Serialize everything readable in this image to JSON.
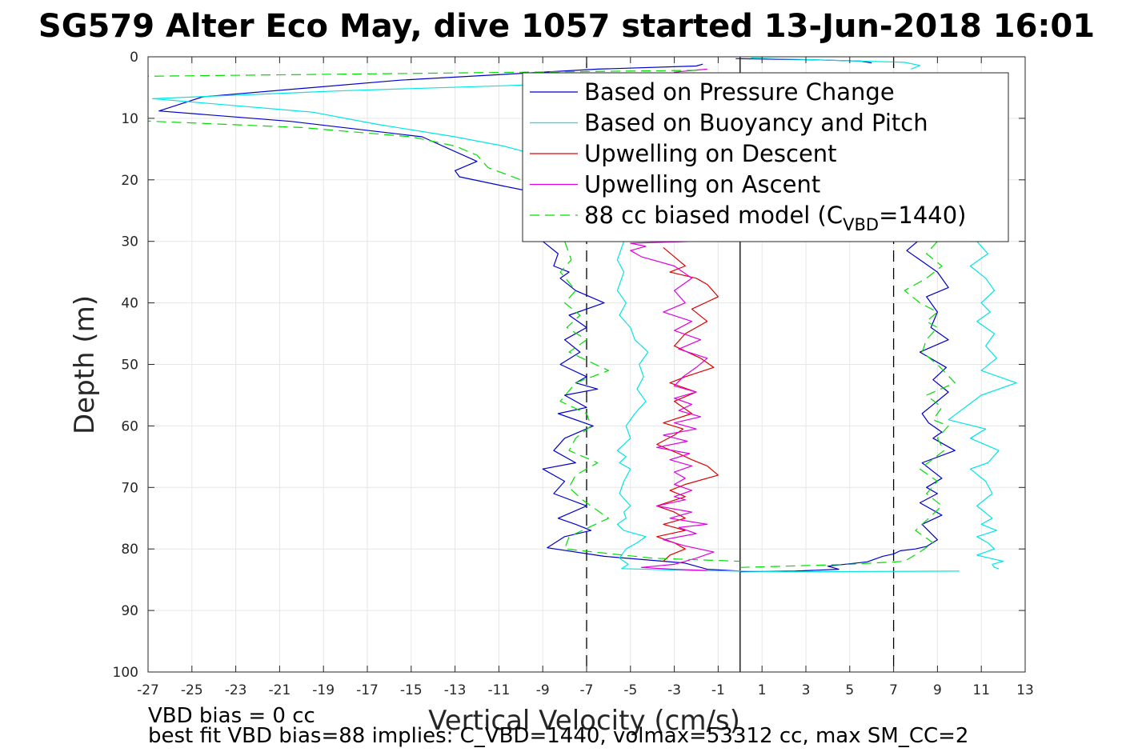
{
  "chart_data": {
    "type": "line",
    "title": "SG579 Alter Eco May, dive 1057 started 13-Jun-2018 16:01",
    "xlabel": "Vertical Velocity (cm/s)",
    "ylabel": "Depth (m)",
    "xlim": [
      -27,
      13
    ],
    "ylim": [
      0,
      100
    ],
    "y_reversed": true,
    "grid": true,
    "x_ticks": [
      -27,
      -25,
      -23,
      -21,
      -19,
      -17,
      -15,
      -13,
      -11,
      -9,
      -7,
      -5,
      -3,
      -1,
      1,
      3,
      5,
      7,
      9,
      11,
      13
    ],
    "y_ticks": [
      0,
      10,
      20,
      30,
      40,
      50,
      60,
      70,
      80,
      90,
      100
    ],
    "legend_placement": "top-right",
    "reference_lines": [
      {
        "x": -7,
        "style": "dashed",
        "color": "#000000"
      },
      {
        "x": 0,
        "style": "solid",
        "color": "#000000"
      },
      {
        "x": 7,
        "style": "dashed",
        "color": "#000000"
      }
    ],
    "series": [
      {
        "name": "Based on Pressure Change",
        "color": "#0000cc",
        "dash": false,
        "segments": [
          {
            "x": [
              -1.7,
              -2.0,
              -6.5,
              -15.5,
              -24.5,
              -26.5,
              -20.5,
              -14.5,
              -12.0,
              -13.0,
              -12.8,
              -10.8,
              -8.0
            ],
            "y": [
              1.2,
              1.5,
              2.0,
              3.8,
              6.5,
              8.8,
              10.5,
              13.0,
              17.0,
              18.5,
              19.5,
              21.0,
              23.0
            ]
          },
          {
            "x": [
              -9.0,
              -8.3,
              -8.5,
              -7.8,
              -8.2,
              -7.5,
              -6.2,
              -7.8,
              -7.0,
              -8.0,
              -7.3,
              -8.2,
              -7.0,
              -7.5,
              -6.5,
              -8.0,
              -7.0,
              -8.3,
              -6.7,
              -8.0,
              -8.5,
              -7.5,
              -9.0,
              -8.0,
              -8.5,
              -7.0,
              -8.3,
              -7.5,
              -6.8,
              -8.0,
              -8.8,
              -6.2,
              -2.5,
              -1.5,
              0.0
            ],
            "y": [
              30,
              32,
              34,
              35,
              36,
              38,
              40,
              42,
              44,
              46,
              48,
              50,
              52,
              53,
              54,
              55,
              57,
              58,
              60,
              62,
              64,
              66,
              67,
              69,
              71,
              73,
              75,
              76,
              77,
              78,
              79.8,
              81.2,
              82.3,
              83.3,
              83.6
            ]
          },
          {
            "x": [
              0.0,
              2.5,
              4.5,
              4.0,
              5.8,
              6.5,
              7.0,
              7.3,
              8.0,
              8.5,
              9.0,
              8.3,
              9.2,
              8.2,
              9.0,
              8.5,
              9.2,
              8.3,
              9.8,
              8.8,
              9.2,
              8.6,
              8.3,
              9.5,
              8.8,
              9.4,
              8.2,
              9.5,
              8.7,
              9.0,
              8.5,
              9.5,
              9.0,
              8.2,
              7.6,
              8.1
            ],
            "y": [
              83.7,
              83.6,
              83.3,
              82.8,
              82.1,
              81.2,
              80.8,
              80.3,
              80.0,
              79.6,
              78.5,
              76.0,
              74.5,
              72.5,
              71.0,
              70.0,
              68.5,
              66.0,
              64.0,
              62.0,
              61.0,
              59.5,
              58.0,
              54.5,
              52.5,
              50.5,
              48.0,
              46.0,
              44.0,
              41.5,
              39.0,
              37.5,
              35.0,
              33.0,
              31.5,
              30.0
            ]
          },
          {
            "x": [
              -0.2,
              3.5,
              5.5,
              6.0
            ],
            "y": [
              0.3,
              0.5,
              0.7,
              1.0
            ]
          }
        ]
      },
      {
        "name": "Based on Buoyancy and Pitch",
        "color": "#00e5e5",
        "dash": false,
        "segments": [
          {
            "x": [
              -2.2,
              -3.0,
              -9.0,
              -18.0,
              -26.8,
              -19.5,
              -16.5,
              -13.0,
              -10.8,
              -9.2,
              -8.0
            ],
            "y": [
              3.8,
              4.2,
              4.5,
              5.5,
              6.8,
              9.0,
              11.0,
              13.0,
              14.5,
              16.0,
              17.5
            ]
          },
          {
            "x": [
              -5.3,
              -5.6,
              -5.3,
              -5.6,
              -5.2,
              -5.5,
              -5.0,
              -4.8,
              -4.2,
              -4.6,
              -4.4,
              -4.7,
              -4.3,
              -4.8,
              -5.2,
              -5.0,
              -5.6,
              -5.2,
              -5.5,
              -5.0,
              -5.3,
              -5.5,
              -5.0,
              -5.3,
              -5.2,
              -5.6,
              -5.3,
              -4.3,
              -4.7,
              -5.2,
              -5.5,
              -5.1,
              -5.4,
              -2.0,
              2.0,
              10.0
            ],
            "y": [
              30,
              33,
              35,
              38,
              40,
              42,
              44,
              46,
              48,
              50,
              52,
              54,
              56,
              58,
              60,
              62,
              64,
              65,
              66,
              67,
              69,
              71,
              73,
              74,
              75,
              76,
              77,
              78,
              79,
              80,
              81.5,
              82.5,
              83.2,
              83.5,
              83.7,
              83.6
            ]
          },
          {
            "x": [
              10.8,
              11.3,
              10.5,
              11.2,
              11.6,
              11.0,
              11.4,
              10.8,
              11.6,
              11.2,
              11.7,
              11.0,
              12.6,
              11.0,
              9.5,
              11.2,
              10.5,
              11.8,
              11.3,
              10.5,
              11.2,
              11.5,
              10.8,
              11.5,
              11.0,
              11.7,
              10.8,
              11.3,
              11.6,
              10.8,
              12.0,
              11.5,
              11.6,
              11.8
            ],
            "y": [
              30,
              32,
              34,
              36,
              38,
              40,
              41.5,
              43,
              45,
              47,
              49,
              51,
              53,
              55,
              59,
              60.5,
              62,
              64,
              66,
              67,
              69,
              71,
              73,
              75,
              76,
              77,
              78,
              79,
              80,
              81,
              82,
              82.5,
              83,
              83.2
            ]
          },
          {
            "x": [
              0.5,
              3.5,
              7.5,
              8.2,
              7.8
            ],
            "y": [
              0.2,
              0.5,
              0.9,
              1.4,
              2.0
            ]
          }
        ]
      },
      {
        "name": "Upwelling on Descent",
        "color": "#e00000",
        "dash": false,
        "segments": [
          {
            "x": [
              -3.5,
              -3.0,
              -2.5,
              -3.2,
              -2.0,
              -1.5,
              -1.0,
              -2.2,
              -1.5,
              -2.5,
              -3.0,
              -1.8,
              -1.2,
              -2.5,
              -3.2,
              -2.0,
              -3.0,
              -2.2,
              -3.5,
              -2.6,
              -3.0,
              -3.8,
              -2.8,
              -2.2,
              -1.5,
              -1.0,
              -2.5,
              -3.2,
              -2.5,
              -3.8,
              -3.0,
              -2.5,
              -3.5,
              -2.5,
              -3.8,
              -3.0,
              -2.5,
              -3.2,
              -3.5
            ],
            "y": [
              31,
              32.5,
              34,
              35,
              36,
              37,
              39,
              41,
              43,
              45,
              47,
              49,
              50.5,
              52,
              53,
              54.5,
              56,
              58,
              59.5,
              60.5,
              61.5,
              63,
              64.5,
              65.5,
              66.5,
              68,
              69.5,
              70.5,
              71.5,
              73,
              74,
              75,
              76,
              77,
              78,
              79,
              80,
              81,
              82
            ]
          }
        ]
      },
      {
        "name": "Upwelling on Ascent",
        "color": "#e000e0",
        "dash": false,
        "segments": [
          {
            "x": [
              -1.5,
              -3.0,
              -4.5,
              -3.0,
              -2.0,
              -1.2,
              -2.5,
              -3.5,
              -2.0,
              -2.8,
              -1.5,
              -3.2,
              -2.2,
              -3.8,
              -2.5,
              -3.0,
              -2.2,
              -3.0,
              -2.5,
              -3.0,
              -2.2,
              -3.2,
              -2.3,
              -3.8,
              -2.4,
              -3.5,
              -2.0,
              -3.0,
              -1.8,
              -2.8,
              -2.2,
              -3.0,
              -2.0,
              -3.0,
              -2.6,
              -2.0,
              -1.5,
              -2.8,
              -1.8,
              -3.0,
              -2.2,
              -3.5,
              -2.5,
              -3.0,
              -2.2,
              -3.0,
              -4.5,
              -5.0,
              -4.3,
              -5.0,
              -2.0
            ],
            "y": [
              83.5,
              83.3,
              83,
              82.5,
              81.5,
              80.5,
              79.5,
              78.5,
              77.5,
              76.5,
              76,
              75,
              74,
              73,
              72,
              71.5,
              70.5,
              69.5,
              68.5,
              67.5,
              66.5,
              65.5,
              64.5,
              63.5,
              62.5,
              61.5,
              60.5,
              59.5,
              58.5,
              57.5,
              56.5,
              55.5,
              54.5,
              53.5,
              52,
              50.5,
              49,
              47.5,
              46,
              44.5,
              43,
              41.5,
              40,
              38,
              36,
              34,
              32.5,
              31.5,
              30.8,
              30.3,
              30
            ]
          },
          {
            "x": [
              -1.5,
              -3.0,
              -2.0
            ],
            "y": [
              2.0,
              2.5,
              3.0
            ]
          }
        ]
      },
      {
        "name": "88 cc biased model (CVBD=1440)",
        "legend_base": "88 cc biased model (C",
        "legend_sub": "VBD",
        "legend_tail": "=1440)",
        "color": "#00dd00",
        "dash": true,
        "segments": [
          {
            "x": [
              -2.0,
              -28.0
            ],
            "y": [
              2.2,
              3.2
            ]
          },
          {
            "x": [
              -28.0,
              -20.0,
              -15.0,
              -13.0,
              -12.0,
              -11.5,
              -10.0
            ],
            "y": [
              10.3,
              11.5,
              13.0,
              14.5,
              16.0,
              18.0,
              20.0
            ]
          },
          {
            "x": [
              -8.0,
              -7.7,
              -8.2,
              -7.5,
              -8.0,
              -7.3,
              -7.9,
              -7.0,
              -7.8,
              -6.0,
              -7.5,
              -8.2,
              -7.0,
              -6.8,
              -7.5,
              -7.8,
              -6.5,
              -7.5,
              -7.8,
              -7.2,
              -6.0,
              -7.8,
              -8.0,
              -4.0,
              0.0
            ],
            "y": [
              30,
              33,
              35,
              38,
              40,
              42,
              44,
              46,
              48,
              51,
              53,
              56,
              58,
              60,
              62,
              64,
              66,
              68,
              70,
              72,
              75,
              78,
              80,
              81.5,
              82.0
            ]
          },
          {
            "x": [
              0.0,
              5.0,
              7.5,
              8.2,
              8.8,
              8.0,
              8.6,
              9.2,
              8.5,
              9.0,
              8.2,
              9.3,
              9.0,
              9.5,
              8.8,
              9.2,
              8.5,
              9.8,
              9.0,
              8.3,
              8.5,
              9.0,
              8.5,
              9.0,
              8.2,
              7.5,
              8.5,
              9.2,
              8.5,
              9.0
            ],
            "y": [
              83.0,
              82.5,
              82.0,
              80.5,
              79.0,
              77.0,
              75.0,
              73.0,
              71.0,
              69.0,
              67.0,
              64.0,
              62.0,
              60.0,
              59.0,
              57.0,
              55.0,
              53.0,
              50.0,
              48.0,
              46.0,
              44.0,
              43.0,
              41.5,
              40.0,
              38.0,
              36.0,
              34.0,
              32.0,
              30.0
            ]
          }
        ]
      }
    ]
  },
  "notes": {
    "line1": "VBD bias = 0 cc",
    "line2": "best fit VBD bias=88 implies: C_VBD=1440, volmax=53312 cc, max SM_CC=2"
  }
}
